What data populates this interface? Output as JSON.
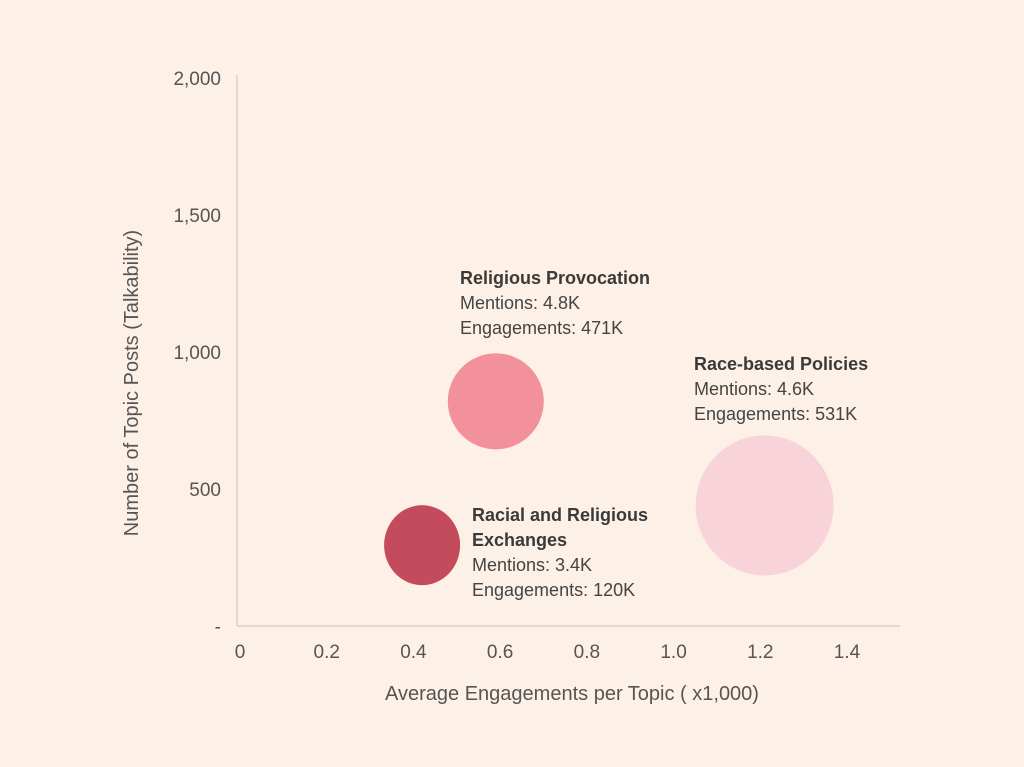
{
  "chart_data": {
    "type": "scatter",
    "xlabel": "Average Engagements per Topic ( x1,000)",
    "ylabel": "Number of Topic Posts (Talkability)",
    "xlim": [
      0,
      1.5
    ],
    "ylim": [
      0,
      2000
    ],
    "x_ticks": [
      {
        "value": 0,
        "label": "0"
      },
      {
        "value": 0.2,
        "label": "0.2"
      },
      {
        "value": 0.4,
        "label": "0.4"
      },
      {
        "value": 0.6,
        "label": "0.6"
      },
      {
        "value": 0.8,
        "label": "0.8"
      },
      {
        "value": 1.0,
        "label": "1.0"
      },
      {
        "value": 1.2,
        "label": "1.2"
      },
      {
        "value": 1.4,
        "label": "1.4"
      }
    ],
    "y_ticks": [
      {
        "value": 0,
        "label": "-"
      },
      {
        "value": 500,
        "label": "500"
      },
      {
        "value": 1000,
        "label": "1,000"
      },
      {
        "value": 1500,
        "label": "1,500"
      },
      {
        "value": 2000,
        "label": "2,000"
      }
    ],
    "grid": false,
    "points": [
      {
        "id": "religious-provocation",
        "x": 0.59,
        "y": 820,
        "size": 4.8,
        "color": "#f2919b",
        "label_lines": [
          "Religious Provocation",
          "Mentions: 4.8K",
          "Engagements: 471K"
        ]
      },
      {
        "id": "race-based-policies",
        "x": 1.21,
        "y": 440,
        "size": 4.6,
        "color": "#f9d3da",
        "label_lines": [
          "Race-based Policies",
          "Mentions: 4.6K",
          "Engagements: 531K"
        ]
      },
      {
        "id": "racial-religious-exchanges",
        "x": 0.42,
        "y": 295,
        "size": 3.4,
        "color": "#c44b5c",
        "label_lines": [
          "Racial and Religious",
          "Exchanges",
          "Mentions: 3.4K",
          "Engagements: 120K"
        ]
      }
    ]
  }
}
